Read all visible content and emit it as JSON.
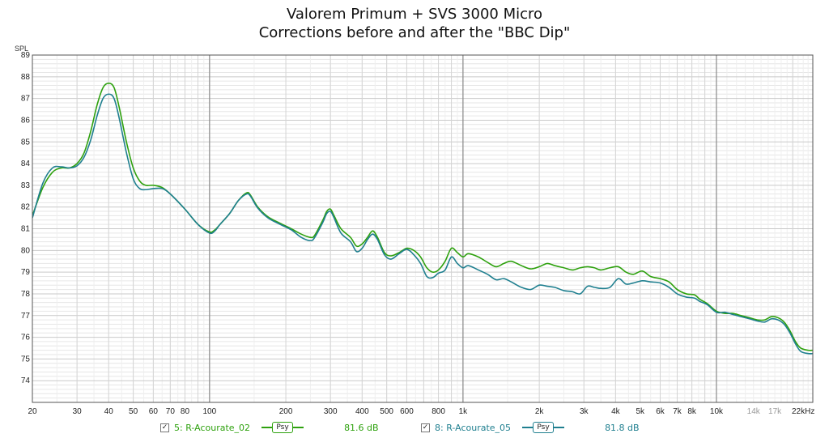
{
  "chart_data": {
    "type": "line",
    "title": "Valorem Primum + SVS 3000 Micro",
    "subtitle": "Corrections before and after the \"BBC Dip\"",
    "ylabel": "SPL",
    "xlabel": "",
    "x_scale": "log",
    "xlim": [
      20,
      24000
    ],
    "ylim": [
      73,
      89
    ],
    "grid": true,
    "x_tick_labels": [
      {
        "v": 20,
        "t": "20"
      },
      {
        "v": 30,
        "t": "30"
      },
      {
        "v": 40,
        "t": "40"
      },
      {
        "v": 50,
        "t": "50"
      },
      {
        "v": 60,
        "t": "60"
      },
      {
        "v": 70,
        "t": "70"
      },
      {
        "v": 80,
        "t": "80"
      },
      {
        "v": 100,
        "t": "100"
      },
      {
        "v": 200,
        "t": "200"
      },
      {
        "v": 300,
        "t": "300"
      },
      {
        "v": 400,
        "t": "400"
      },
      {
        "v": 500,
        "t": "500"
      },
      {
        "v": 600,
        "t": "600"
      },
      {
        "v": 800,
        "t": "800"
      },
      {
        "v": 1000,
        "t": "1k"
      },
      {
        "v": 2000,
        "t": "2k"
      },
      {
        "v": 3000,
        "t": "3k"
      },
      {
        "v": 4000,
        "t": "4k"
      },
      {
        "v": 5000,
        "t": "5k"
      },
      {
        "v": 6000,
        "t": "6k"
      },
      {
        "v": 7000,
        "t": "7k"
      },
      {
        "v": 8000,
        "t": "8k"
      },
      {
        "v": 10000,
        "t": "10k"
      },
      {
        "v": 14000,
        "t": "14k",
        "muted": true
      },
      {
        "v": 17000,
        "t": "17k",
        "muted": true
      },
      {
        "v": 22000,
        "t": "22kHz"
      }
    ],
    "y_ticks": [
      74,
      75,
      76,
      77,
      78,
      79,
      80,
      81,
      82,
      83,
      84,
      85,
      86,
      87,
      88,
      89
    ],
    "series": [
      {
        "name": "5: R-Acourate_02",
        "color": "#2ea10e",
        "points": [
          [
            20,
            81.6
          ],
          [
            22,
            82.9
          ],
          [
            24,
            83.6
          ],
          [
            26,
            83.8
          ],
          [
            28,
            83.8
          ],
          [
            30,
            84.0
          ],
          [
            32,
            84.5
          ],
          [
            34,
            85.5
          ],
          [
            36,
            86.7
          ],
          [
            38,
            87.5
          ],
          [
            40,
            87.7
          ],
          [
            42,
            87.5
          ],
          [
            44,
            86.6
          ],
          [
            47,
            85.0
          ],
          [
            50,
            83.8
          ],
          [
            53,
            83.2
          ],
          [
            56,
            83.0
          ],
          [
            60,
            83.0
          ],
          [
            65,
            82.9
          ],
          [
            70,
            82.6
          ],
          [
            80,
            81.9
          ],
          [
            90,
            81.2
          ],
          [
            100,
            80.85
          ],
          [
            105,
            80.95
          ],
          [
            110,
            81.2
          ],
          [
            120,
            81.7
          ],
          [
            130,
            82.3
          ],
          [
            140,
            82.65
          ],
          [
            145,
            82.55
          ],
          [
            155,
            82.0
          ],
          [
            170,
            81.55
          ],
          [
            190,
            81.25
          ],
          [
            210,
            81.0
          ],
          [
            230,
            80.75
          ],
          [
            250,
            80.6
          ],
          [
            260,
            80.7
          ],
          [
            280,
            81.4
          ],
          [
            290,
            81.8
          ],
          [
            300,
            81.9
          ],
          [
            310,
            81.6
          ],
          [
            330,
            81.0
          ],
          [
            360,
            80.6
          ],
          [
            380,
            80.2
          ],
          [
            400,
            80.3
          ],
          [
            420,
            80.6
          ],
          [
            440,
            80.9
          ],
          [
            460,
            80.6
          ],
          [
            490,
            79.9
          ],
          [
            520,
            79.75
          ],
          [
            560,
            79.9
          ],
          [
            600,
            80.1
          ],
          [
            640,
            80.0
          ],
          [
            680,
            79.7
          ],
          [
            720,
            79.2
          ],
          [
            760,
            79.0
          ],
          [
            800,
            79.1
          ],
          [
            850,
            79.5
          ],
          [
            900,
            80.1
          ],
          [
            950,
            79.9
          ],
          [
            1000,
            79.7
          ],
          [
            1050,
            79.85
          ],
          [
            1150,
            79.7
          ],
          [
            1250,
            79.45
          ],
          [
            1350,
            79.25
          ],
          [
            1450,
            79.4
          ],
          [
            1550,
            79.5
          ],
          [
            1700,
            79.3
          ],
          [
            1850,
            79.15
          ],
          [
            2000,
            79.25
          ],
          [
            2150,
            79.4
          ],
          [
            2300,
            79.3
          ],
          [
            2500,
            79.2
          ],
          [
            2700,
            79.1
          ],
          [
            2900,
            79.2
          ],
          [
            3100,
            79.25
          ],
          [
            3300,
            79.2
          ],
          [
            3500,
            79.1
          ],
          [
            3800,
            79.2
          ],
          [
            4100,
            79.25
          ],
          [
            4400,
            79.0
          ],
          [
            4700,
            78.9
          ],
          [
            5100,
            79.05
          ],
          [
            5500,
            78.8
          ],
          [
            6000,
            78.7
          ],
          [
            6500,
            78.55
          ],
          [
            7000,
            78.2
          ],
          [
            7600,
            78.0
          ],
          [
            8200,
            77.95
          ],
          [
            8600,
            77.75
          ],
          [
            9200,
            77.55
          ],
          [
            10000,
            77.2
          ],
          [
            10800,
            77.1
          ],
          [
            11600,
            77.1
          ],
          [
            12500,
            77.0
          ],
          [
            13500,
            76.9
          ],
          [
            14500,
            76.8
          ],
          [
            15500,
            76.8
          ],
          [
            16500,
            76.95
          ],
          [
            17500,
            76.9
          ],
          [
            18500,
            76.7
          ],
          [
            19500,
            76.3
          ],
          [
            20500,
            75.8
          ],
          [
            21500,
            75.5
          ],
          [
            23000,
            75.4
          ],
          [
            24000,
            75.4
          ]
        ]
      },
      {
        "name": "8: R-Acourate_05",
        "color": "#1f7f8f",
        "points": [
          [
            20,
            81.5
          ],
          [
            22,
            83.1
          ],
          [
            24,
            83.8
          ],
          [
            26,
            83.85
          ],
          [
            28,
            83.8
          ],
          [
            30,
            83.9
          ],
          [
            32,
            84.3
          ],
          [
            34,
            85.1
          ],
          [
            36,
            86.2
          ],
          [
            38,
            87.0
          ],
          [
            40,
            87.2
          ],
          [
            42,
            87.0
          ],
          [
            44,
            86.1
          ],
          [
            47,
            84.5
          ],
          [
            50,
            83.3
          ],
          [
            53,
            82.85
          ],
          [
            56,
            82.8
          ],
          [
            60,
            82.85
          ],
          [
            65,
            82.85
          ],
          [
            70,
            82.6
          ],
          [
            80,
            81.9
          ],
          [
            90,
            81.2
          ],
          [
            100,
            80.8
          ],
          [
            105,
            80.9
          ],
          [
            110,
            81.2
          ],
          [
            120,
            81.7
          ],
          [
            130,
            82.3
          ],
          [
            140,
            82.6
          ],
          [
            145,
            82.5
          ],
          [
            155,
            81.95
          ],
          [
            170,
            81.5
          ],
          [
            190,
            81.2
          ],
          [
            210,
            80.95
          ],
          [
            230,
            80.6
          ],
          [
            250,
            80.45
          ],
          [
            260,
            80.6
          ],
          [
            280,
            81.3
          ],
          [
            290,
            81.7
          ],
          [
            300,
            81.8
          ],
          [
            310,
            81.5
          ],
          [
            330,
            80.8
          ],
          [
            360,
            80.4
          ],
          [
            380,
            79.95
          ],
          [
            400,
            80.1
          ],
          [
            420,
            80.5
          ],
          [
            440,
            80.75
          ],
          [
            460,
            80.5
          ],
          [
            490,
            79.8
          ],
          [
            520,
            79.6
          ],
          [
            560,
            79.85
          ],
          [
            600,
            80.05
          ],
          [
            640,
            79.8
          ],
          [
            680,
            79.4
          ],
          [
            720,
            78.8
          ],
          [
            760,
            78.75
          ],
          [
            800,
            78.95
          ],
          [
            850,
            79.1
          ],
          [
            900,
            79.7
          ],
          [
            950,
            79.4
          ],
          [
            1000,
            79.2
          ],
          [
            1050,
            79.3
          ],
          [
            1150,
            79.1
          ],
          [
            1250,
            78.9
          ],
          [
            1350,
            78.65
          ],
          [
            1450,
            78.7
          ],
          [
            1550,
            78.55
          ],
          [
            1700,
            78.3
          ],
          [
            1850,
            78.2
          ],
          [
            2000,
            78.4
          ],
          [
            2150,
            78.35
          ],
          [
            2300,
            78.3
          ],
          [
            2500,
            78.15
          ],
          [
            2700,
            78.1
          ],
          [
            2900,
            78.0
          ],
          [
            3100,
            78.35
          ],
          [
            3300,
            78.3
          ],
          [
            3500,
            78.25
          ],
          [
            3800,
            78.3
          ],
          [
            4100,
            78.7
          ],
          [
            4400,
            78.45
          ],
          [
            4700,
            78.5
          ],
          [
            5100,
            78.6
          ],
          [
            5500,
            78.55
          ],
          [
            6000,
            78.5
          ],
          [
            6500,
            78.3
          ],
          [
            7000,
            78.0
          ],
          [
            7600,
            77.85
          ],
          [
            8200,
            77.8
          ],
          [
            8600,
            77.65
          ],
          [
            9200,
            77.5
          ],
          [
            10000,
            77.15
          ],
          [
            10800,
            77.15
          ],
          [
            11600,
            77.05
          ],
          [
            12500,
            76.95
          ],
          [
            13500,
            76.85
          ],
          [
            14500,
            76.75
          ],
          [
            15500,
            76.7
          ],
          [
            16500,
            76.85
          ],
          [
            17500,
            76.8
          ],
          [
            18500,
            76.6
          ],
          [
            19500,
            76.2
          ],
          [
            20500,
            75.7
          ],
          [
            21500,
            75.35
          ],
          [
            23000,
            75.25
          ],
          [
            24000,
            75.25
          ]
        ]
      }
    ]
  },
  "legend": [
    {
      "check": "✓",
      "label": "5: R-Acourate_02",
      "tag": "Psy",
      "value": "81.6 dB",
      "color": "#2ea10e"
    },
    {
      "check": "✓",
      "label": "8: R-Acourate_05",
      "tag": "Psy",
      "value": "81.8 dB",
      "color": "#1f7f8f"
    }
  ]
}
